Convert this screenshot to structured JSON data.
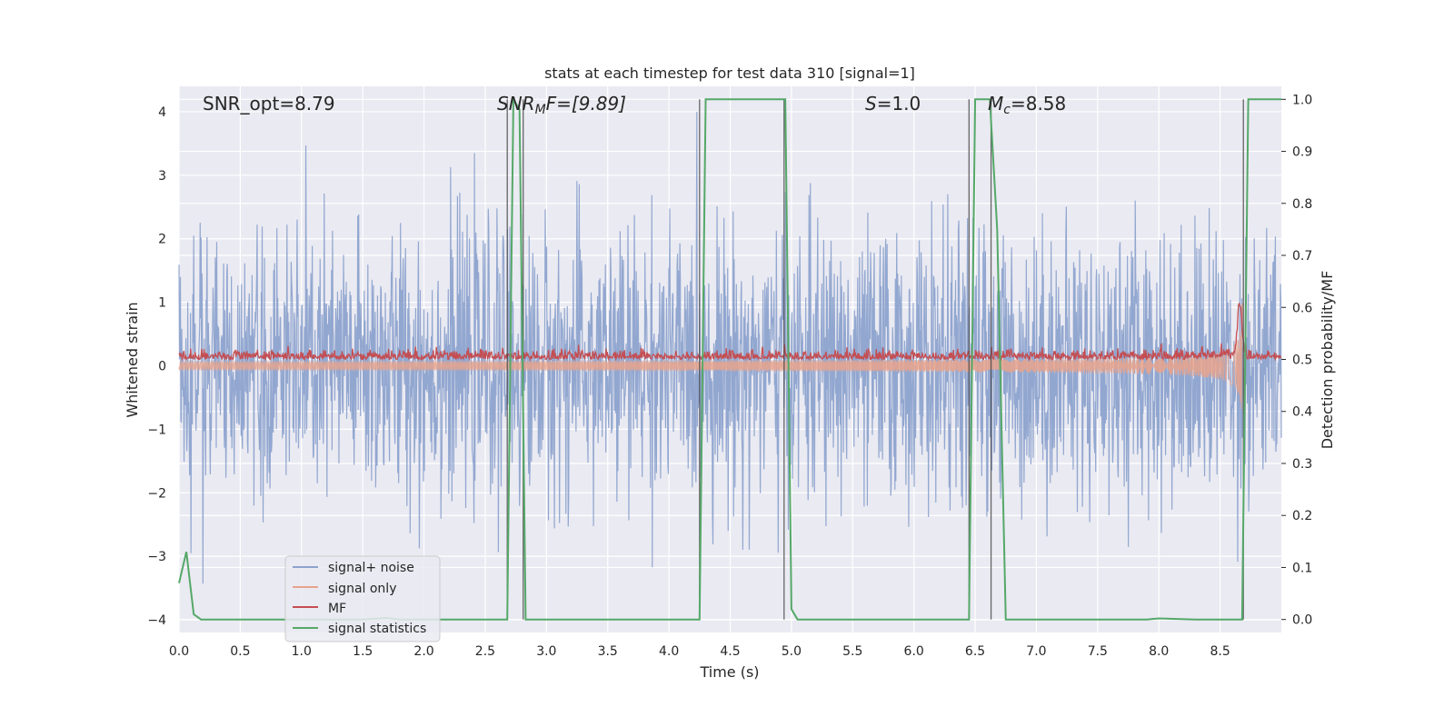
{
  "chart_data": {
    "type": "line",
    "title": "stats at each timestep for test data 310 [signal=1]",
    "xlabel": "Time (s)",
    "ylabel": "Whitened strain",
    "y2label": "Detection probability/MF",
    "xlim": [
      0.0,
      9.0
    ],
    "ylim": [
      -4.2,
      4.4
    ],
    "y2lim": [
      -0.025,
      1.025
    ],
    "xticks": [
      "0.0",
      "0.5",
      "1.0",
      "1.5",
      "2.0",
      "2.5",
      "3.0",
      "3.5",
      "4.0",
      "4.5",
      "5.0",
      "5.5",
      "6.0",
      "6.5",
      "7.0",
      "7.5",
      "8.0",
      "8.5"
    ],
    "yticks": [
      "4",
      "3",
      "2",
      "1",
      "0",
      "−1",
      "−2",
      "−3",
      "−4"
    ],
    "y2ticks": [
      "1.0",
      "0.9",
      "0.8",
      "0.7",
      "0.6",
      "0.5",
      "0.4",
      "0.3",
      "0.2",
      "0.1",
      "0.0"
    ],
    "grid": true,
    "legend_position": "lower-left",
    "annotations": {
      "snr_opt": "SNR_opt=8.79",
      "snr_mf_base": "SNR",
      "snr_mf_sub": "M",
      "snr_mf_rest": "F=[9.89]",
      "s_base": "S",
      "s_rest": "=1.0",
      "mc_base": "M",
      "mc_sub": "c",
      "mc_rest": "=8.58"
    },
    "series": [
      {
        "name": "signal+ noise",
        "color": "#8da3cd",
        "description_range": [
          -4.0,
          4.0
        ]
      },
      {
        "name": "signal only",
        "color": "#e8a38c",
        "chirp_end": 8.7,
        "max_amplitude": 1.0
      },
      {
        "name": "MF",
        "color": "#c44e52",
        "baseline": 0.1,
        "peak": 1.0,
        "peak_time": 8.66
      },
      {
        "name": "signal statistics",
        "color": "#55a868",
        "axis": "right",
        "x": [
          0.0,
          0.06,
          0.12,
          0.18,
          0.25,
          1.0,
          1.5,
          1.7,
          1.8,
          2.0,
          2.5,
          2.68,
          2.73,
          2.78,
          2.83,
          2.88,
          4.25,
          4.3,
          4.35,
          4.95,
          5.0,
          5.05,
          5.1,
          6.45,
          6.5,
          6.62,
          6.68,
          6.75,
          7.0,
          7.9,
          8.0,
          8.3,
          8.4,
          8.68,
          8.73,
          9.0
        ],
        "y": [
          0.07,
          0.13,
          0.01,
          0.0,
          0.0,
          0.0,
          0.0,
          0.003,
          0.0,
          0.0,
          0.0,
          0.0,
          1.0,
          0.98,
          0.0,
          0.0,
          0.0,
          1.0,
          1.0,
          1.0,
          0.02,
          0.0,
          0.0,
          0.0,
          1.0,
          1.0,
          0.75,
          0.0,
          0.0,
          0.0,
          0.002,
          0.0,
          0.0,
          0.0,
          1.0,
          1.0
        ]
      }
    ],
    "vlines": [
      2.68,
      2.81,
      4.25,
      4.94,
      6.45,
      6.63,
      8.69
    ]
  }
}
